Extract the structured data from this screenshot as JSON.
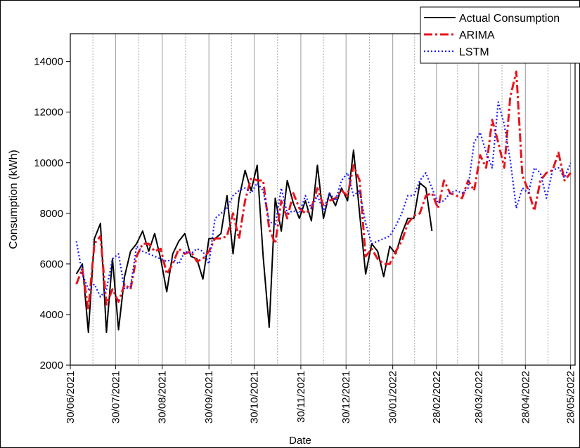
{
  "chart_data": {
    "type": "line",
    "xlabel": "Date",
    "ylabel": "Consumption (kWh)",
    "x": [
      "2021-07-04",
      "2021-07-08",
      "2021-07-12",
      "2021-07-16",
      "2021-07-20",
      "2021-07-24",
      "2021-07-28",
      "2021-08-01",
      "2021-08-05",
      "2021-08-09",
      "2021-08-13",
      "2021-08-17",
      "2021-08-21",
      "2021-08-25",
      "2021-08-29",
      "2021-09-02",
      "2021-09-06",
      "2021-09-10",
      "2021-09-14",
      "2021-09-18",
      "2021-09-22",
      "2021-09-26",
      "2021-09-30",
      "2021-10-04",
      "2021-10-08",
      "2021-10-12",
      "2021-10-16",
      "2021-10-20",
      "2021-10-24",
      "2021-10-28",
      "2021-11-01",
      "2021-11-05",
      "2021-11-09",
      "2021-11-13",
      "2021-11-17",
      "2021-11-21",
      "2021-11-25",
      "2021-11-29",
      "2021-12-03",
      "2021-12-07",
      "2021-12-11",
      "2021-12-15",
      "2021-12-19",
      "2021-12-23",
      "2021-12-27",
      "2021-12-31",
      "2022-01-04",
      "2022-01-08",
      "2022-01-12",
      "2022-01-16",
      "2022-01-20",
      "2022-01-24",
      "2022-01-28",
      "2022-02-01",
      "2022-02-05",
      "2022-02-09",
      "2022-02-13",
      "2022-02-17",
      "2022-02-21",
      "2022-02-25",
      "2022-03-01",
      "2022-03-05",
      "2022-03-09",
      "2022-03-13",
      "2022-03-17",
      "2022-03-21",
      "2022-03-25",
      "2022-03-29",
      "2022-04-02",
      "2022-04-06",
      "2022-04-10",
      "2022-04-14",
      "2022-04-18",
      "2022-04-22",
      "2022-04-26",
      "2022-04-30",
      "2022-05-04",
      "2022-05-08",
      "2022-05-12",
      "2022-05-16",
      "2022-05-20",
      "2022-05-24",
      "2022-05-28"
    ],
    "series": [
      {
        "name": "Actual Consumption",
        "color": "#000000",
        "style": "solid",
        "values": [
          5600,
          6000,
          3300,
          7000,
          7600,
          3300,
          6200,
          3400,
          5500,
          6500,
          6800,
          7300,
          6500,
          7200,
          6200,
          4900,
          6400,
          6900,
          7200,
          6300,
          6200,
          5400,
          7000,
          7000,
          7200,
          8700,
          6400,
          8600,
          9700,
          8900,
          9900,
          6300,
          3500,
          8600,
          7300,
          9300,
          8400,
          7800,
          8500,
          7700,
          9900,
          7800,
          8800,
          8300,
          9000,
          8500,
          10500,
          8000,
          5600,
          6800,
          6500,
          5500,
          6700,
          6400,
          7200,
          7800,
          7800,
          9200,
          9000,
          7300,
          null,
          null,
          null,
          null,
          null,
          null,
          null,
          null,
          null,
          null,
          null,
          null,
          null,
          null,
          null,
          null,
          null,
          null,
          null,
          null,
          null,
          null,
          null
        ]
      },
      {
        "name": "ARIMA",
        "color": "#e8141c",
        "style": "dashdot",
        "values": [
          5200,
          5800,
          4200,
          6800,
          7100,
          4400,
          5000,
          4500,
          5200,
          5000,
          6300,
          6800,
          6800,
          6500,
          6600,
          5600,
          6000,
          6600,
          6400,
          6500,
          6100,
          6200,
          6500,
          7000,
          7000,
          7100,
          8000,
          7000,
          8500,
          9400,
          9300,
          9300,
          7400,
          6800,
          8500,
          7800,
          8800,
          8200,
          8000,
          8200,
          9000,
          8300,
          8500,
          8600,
          8900,
          8700,
          9900,
          9300,
          6300,
          6600,
          6200,
          6000,
          6000,
          6500,
          6900,
          7600,
          7900,
          8000,
          8700,
          8800,
          8200,
          9300,
          8800,
          8700,
          8600,
          9300,
          8900,
          10300,
          9800,
          11700,
          10800,
          9800,
          12600,
          13600,
          9500,
          8900,
          8100,
          9300,
          9600,
          9700,
          10400,
          9300,
          9600
        ]
      },
      {
        "name": "LSTM",
        "color": "#1a1aff",
        "style": "dotted",
        "values": [
          6900,
          5600,
          5000,
          5200,
          4700,
          5000,
          6200,
          6400,
          5000,
          5100,
          6700,
          6500,
          6400,
          6300,
          6200,
          6100,
          6200,
          6000,
          6500,
          6400,
          6600,
          6500,
          6000,
          7800,
          8000,
          8200,
          8700,
          8900,
          9000,
          8800,
          9200,
          8900,
          7700,
          7500,
          9000,
          8000,
          8100,
          8000,
          8700,
          8200,
          8700,
          8100,
          8800,
          8500,
          9300,
          9600,
          8700,
          8900,
          7600,
          6800,
          6900,
          7000,
          7100,
          7500,
          8000,
          8700,
          8700,
          9300,
          9600,
          9000,
          8400,
          8500,
          8800,
          8900,
          8800,
          9000,
          10800,
          11200,
          10400,
          9800,
          12400,
          11500,
          10100,
          8200,
          9000,
          8800,
          9800,
          9600,
          8600,
          9700,
          9800,
          9400,
          10000
        ]
      }
    ],
    "xlim": [
      "2021-06-30",
      "2022-05-31"
    ],
    "xticks": [
      {
        "value": "2021-06-30",
        "label": "30/06/2021"
      },
      {
        "value": "2021-07-30",
        "label": "30/07/2021"
      },
      {
        "value": "2021-08-30",
        "label": "30/08/2021"
      },
      {
        "value": "2021-09-30",
        "label": "30/09/2021"
      },
      {
        "value": "2021-10-30",
        "label": "30/10/2021"
      },
      {
        "value": "2021-11-30",
        "label": "30/11/2021"
      },
      {
        "value": "2021-12-30",
        "label": "30/12/2021"
      },
      {
        "value": "2022-01-30",
        "label": "30/01/2022"
      },
      {
        "value": "2022-02-28",
        "label": "28/02/2022"
      },
      {
        "value": "2022-03-28",
        "label": "28/03/2022"
      },
      {
        "value": "2022-04-28",
        "label": "28/04/2022"
      },
      {
        "value": "2022-05-28",
        "label": "28/05/2022"
      }
    ],
    "ylim": [
      2000,
      15100
    ],
    "yticks": [
      2000,
      4000,
      6000,
      8000,
      10000,
      12000,
      14000
    ],
    "grid": true,
    "legend": "upper right"
  }
}
